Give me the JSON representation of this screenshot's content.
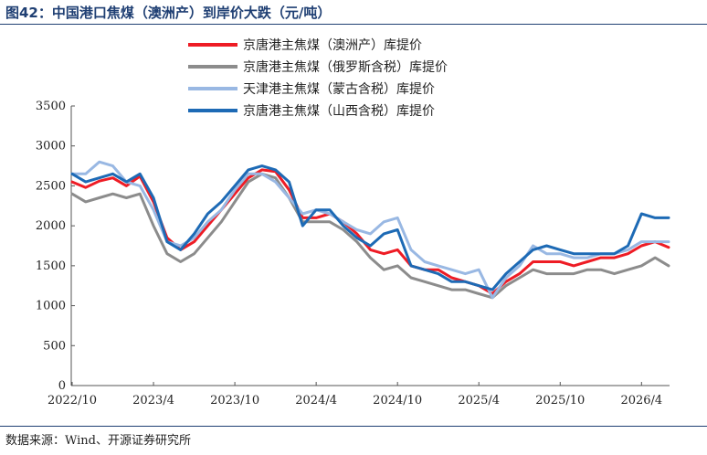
{
  "figure": {
    "title": "图42：中国港口焦煤（澳洲产）到岸价大跌（元/吨）",
    "source": "数据来源：Wind、开源证券研究所"
  },
  "chart_data": {
    "type": "line",
    "title": "",
    "xlabel": "",
    "ylabel": "",
    "ylim": [
      0,
      3500
    ],
    "yticks": [
      0,
      500,
      1000,
      1500,
      2000,
      2500,
      3000,
      3500
    ],
    "xticks": [
      "2022/10",
      "2023/4",
      "2023/10",
      "2024/4",
      "2024/10",
      "2025/4",
      "2025/10",
      "2026/4"
    ],
    "grid": false,
    "legend_position": "top-center",
    "colors": [
      "#ee1c25",
      "#8c8c8c",
      "#99b8e3",
      "#1d6ab5"
    ],
    "x": [
      "2022/10",
      "2022/11",
      "2022/12",
      "2023/1",
      "2023/2",
      "2023/3",
      "2023/4",
      "2023/5",
      "2023/6",
      "2023/7",
      "2023/8",
      "2023/9",
      "2023/10",
      "2023/11",
      "2023/12",
      "2024/1",
      "2024/2",
      "2024/3",
      "2024/4",
      "2024/5",
      "2024/6",
      "2024/7",
      "2024/8",
      "2024/9",
      "2024/10",
      "2024/11",
      "2024/12",
      "2025/1",
      "2025/2",
      "2025/3",
      "2025/4",
      "2025/5",
      "2025/6",
      "2025/7",
      "2025/8",
      "2025/9",
      "2025/10",
      "2025/11",
      "2025/12",
      "2026/1",
      "2026/2",
      "2026/3",
      "2026/4",
      "2026/5",
      "2026/6"
    ],
    "series": [
      {
        "name": "京唐港主焦煤（澳洲产）库提价",
        "values": [
          2550,
          2480,
          2560,
          2600,
          2500,
          2620,
          2300,
          1850,
          1700,
          1800,
          2000,
          2200,
          2400,
          2600,
          2700,
          2680,
          2450,
          2100,
          2100,
          2150,
          2050,
          1900,
          1700,
          1650,
          1700,
          1500,
          1450,
          1450,
          1350,
          1300,
          1250,
          1150,
          1300,
          1400,
          1550,
          1550,
          1550,
          1500,
          1550,
          1600,
          1600,
          1650,
          1750,
          1800,
          1730
        ]
      },
      {
        "name": "京唐港主焦煤（俄罗斯含税）库提价",
        "values": [
          2400,
          2300,
          2350,
          2400,
          2350,
          2400,
          2000,
          1650,
          1550,
          1650,
          1850,
          2050,
          2300,
          2550,
          2650,
          2600,
          2350,
          2050,
          2050,
          2050,
          1950,
          1800,
          1600,
          1450,
          1500,
          1350,
          1300,
          1250,
          1200,
          1200,
          1150,
          1100,
          1250,
          1350,
          1450,
          1400,
          1400,
          1400,
          1450,
          1450,
          1400,
          1450,
          1500,
          1600,
          1500
        ]
      },
      {
        "name": "天津港主焦煤（蒙古含税）库提价",
        "values": [
          2650,
          2650,
          2800,
          2750,
          2550,
          2500,
          2200,
          1800,
          1750,
          1850,
          2050,
          2200,
          2450,
          2650,
          2650,
          2550,
          2350,
          2150,
          2200,
          2150,
          2050,
          1950,
          1900,
          2050,
          2100,
          1700,
          1550,
          1500,
          1450,
          1400,
          1450,
          1100,
          1350,
          1500,
          1750,
          1650,
          1650,
          1600,
          1600,
          1650,
          1650,
          1700,
          1800,
          1800,
          1800
        ]
      },
      {
        "name": "京唐港主焦煤（山西含税）库提价",
        "values": [
          2650,
          2550,
          2600,
          2650,
          2550,
          2650,
          2350,
          1800,
          1700,
          1900,
          2150,
          2300,
          2500,
          2700,
          2750,
          2700,
          2550,
          2000,
          2200,
          2200,
          2000,
          1850,
          1750,
          1900,
          1950,
          1500,
          1450,
          1400,
          1300,
          1300,
          1250,
          1200,
          1400,
          1550,
          1700,
          1750,
          1700,
          1650,
          1650,
          1650,
          1650,
          1750,
          2150,
          2100,
          2100
        ]
      }
    ]
  }
}
